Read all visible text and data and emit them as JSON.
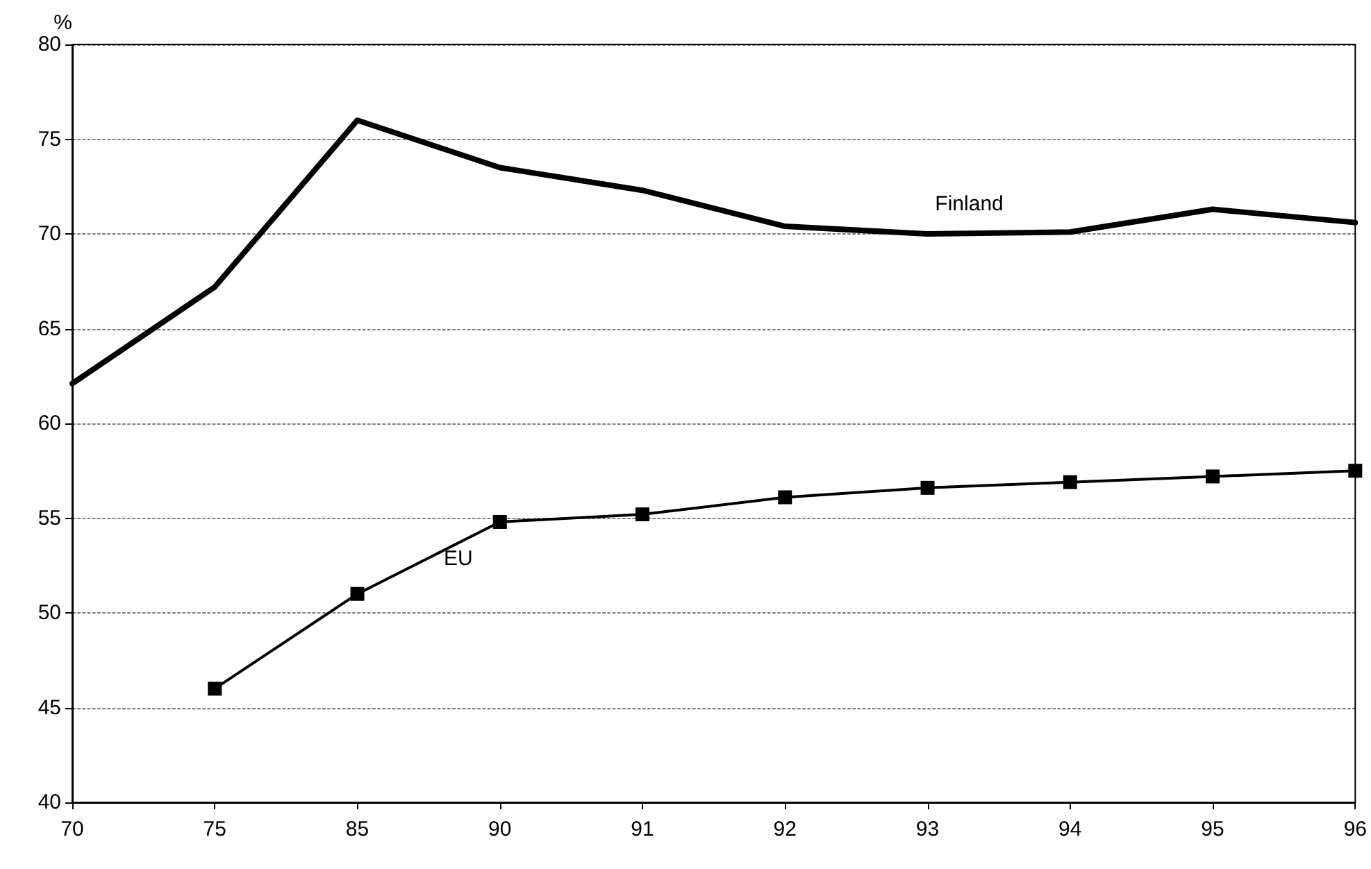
{
  "chart_data": {
    "type": "line",
    "ylabel": "%",
    "categories": [
      "70",
      "75",
      "85",
      "90",
      "91",
      "92",
      "93",
      "94",
      "95",
      "96"
    ],
    "series": [
      {
        "name": "Finland",
        "color": "#000000",
        "marker": "none",
        "values": [
          62.1,
          67.2,
          76.0,
          73.5,
          72.3,
          70.4,
          70.0,
          70.1,
          71.3,
          70.6
        ]
      },
      {
        "name": "EU",
        "color": "#000000",
        "marker": "square",
        "values": [
          null,
          46.0,
          51.0,
          54.8,
          55.2,
          56.1,
          56.6,
          56.9,
          57.2,
          57.5
        ]
      }
    ],
    "ylim": [
      40,
      80
    ],
    "yticks": [
      40,
      45,
      50,
      55,
      60,
      65,
      70,
      75,
      80
    ],
    "grid": "y",
    "legend": false
  }
}
